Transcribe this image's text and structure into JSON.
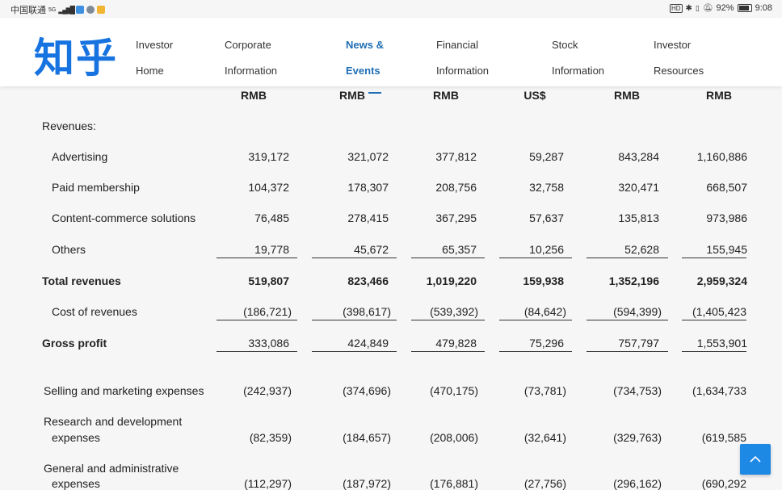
{
  "status_bar": {
    "carrier": "中国联通",
    "network": "5G",
    "battery": "92%",
    "time": "9:08",
    "hd_label": "HD"
  },
  "header": {
    "logo": "知乎",
    "nav": [
      {
        "line1": "Investor",
        "line2": "Home"
      },
      {
        "line1": "Corporate",
        "line2": "Information"
      },
      {
        "line1": "News &",
        "line2": "Events"
      },
      {
        "line1": "Financial",
        "line2": "Information"
      },
      {
        "line1": "Stock",
        "line2": "Information"
      },
      {
        "line1": "Investor",
        "line2": "Resources"
      }
    ]
  },
  "table": {
    "currencies": [
      "RMB",
      "RMB",
      "RMB",
      "US$",
      "RMB",
      "RMB"
    ],
    "revenues_heading": "Revenues:",
    "rows": {
      "advertising": {
        "label": "Advertising",
        "values": [
          "319,172",
          "321,072",
          "377,812",
          "59,287",
          "843,284",
          "1,160,886"
        ]
      },
      "paid_membership": {
        "label": "Paid membership",
        "values": [
          "104,372",
          "178,307",
          "208,756",
          "32,758",
          "320,471",
          "668,507"
        ]
      },
      "content_commerce": {
        "label": "Content-commerce solutions",
        "values": [
          "76,485",
          "278,415",
          "367,295",
          "57,637",
          "135,813",
          "973,986"
        ]
      },
      "others": {
        "label": "Others",
        "values": [
          "19,778",
          "45,672",
          "65,357",
          "10,256",
          "52,628",
          "155,945"
        ]
      },
      "total_revenues": {
        "label": "Total revenues",
        "values": [
          "519,807",
          "823,466",
          "1,019,220",
          "159,938",
          "1,352,196",
          "2,959,324"
        ]
      },
      "cost_of_revenues": {
        "label": "Cost of revenues",
        "values": [
          "(186,721)",
          "(398,617)",
          "(539,392)",
          "(84,642)",
          "(594,399)",
          "(1,405,423"
        ]
      },
      "gross_profit": {
        "label": "Gross profit",
        "values": [
          "333,086",
          "424,849",
          "479,828",
          "75,296",
          "757,797",
          "1,553,901"
        ]
      },
      "selling_marketing": {
        "label": "Selling and marketing expenses",
        "values": [
          "(242,937)",
          "(374,696)",
          "(470,175)",
          "(73,781)",
          "(734,753)",
          "(1,634,733"
        ]
      },
      "research_development": {
        "label_line1": "Research and development",
        "label_line2": "expenses",
        "values": [
          "(82,359)",
          "(184,657)",
          "(208,006)",
          "(32,641)",
          "(329,763)",
          "(619,585"
        ]
      },
      "general_admin": {
        "label_line1": "General and administrative",
        "label_line2": "expenses",
        "values": [
          "(112,297)",
          "(187,972)",
          "(176,881)",
          "(27,756)",
          "(296,162)",
          "(690,292"
        ]
      }
    }
  }
}
